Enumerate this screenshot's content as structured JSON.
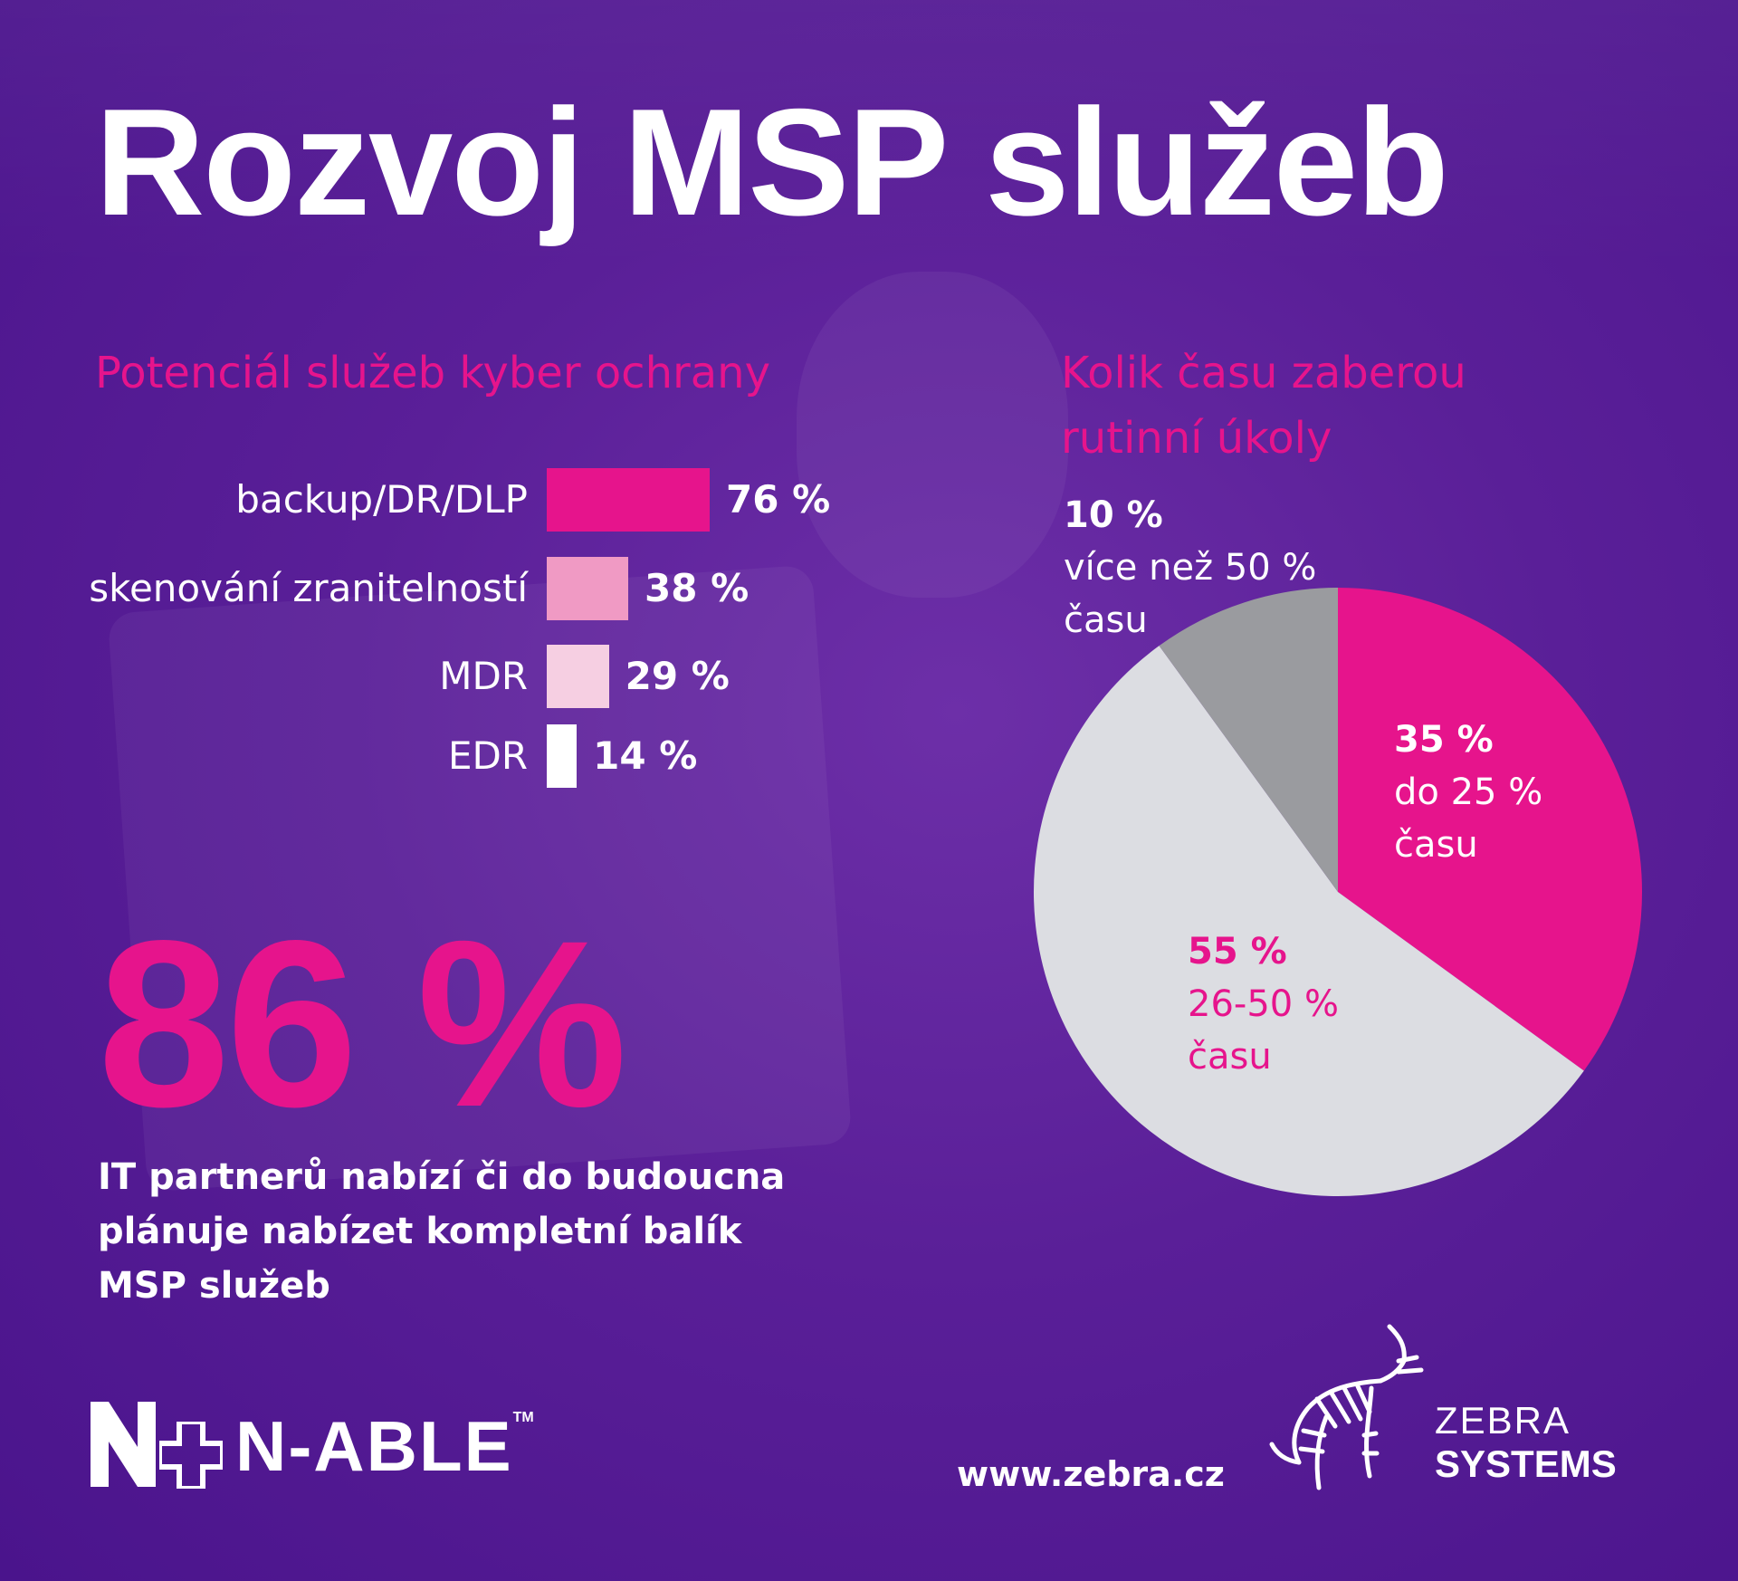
{
  "title": "Rozvoj MSP služeb",
  "colors": {
    "background": "#5a1f98",
    "accent": "#e6148c",
    "bar_shades": [
      "#e6148c",
      "#f09ac4",
      "#f6cfe2",
      "#ffffff"
    ],
    "pie_pink": "#e6148c",
    "pie_light": "#dcdde2",
    "pie_gray": "#9a9b9f"
  },
  "left_section": {
    "title": "Potenciál služeb kyber ochrany"
  },
  "right_section": {
    "title_line1": "Kolik času zaberou",
    "title_line2": "rutinní úkoly"
  },
  "highlight": {
    "value": "86 %",
    "text_line1": "IT partnerů nabízí či do budoucna",
    "text_line2": "plánuje nabízet kompletní balík",
    "text_line3": "MSP služeb"
  },
  "chart_data": [
    {
      "type": "bar",
      "orientation": "horizontal",
      "categories": [
        "backup/DR/DLP",
        "skenování zranitelností",
        "MDR",
        "EDR"
      ],
      "values": [
        76,
        38,
        29,
        14
      ],
      "value_labels": [
        "76 %",
        "38 %",
        "29 %",
        "14 %"
      ],
      "unit": "%"
    },
    {
      "type": "pie",
      "slices": [
        {
          "value": 35,
          "pct_label": "35 %",
          "desc_line1": "do 25 %",
          "desc_line2": "času",
          "color": "#e6148c"
        },
        {
          "value": 55,
          "pct_label": "55 %",
          "desc_line1": "26-50 %",
          "desc_line2": "času",
          "color": "#dcdde2"
        },
        {
          "value": 10,
          "pct_label": "10 %",
          "desc_line1": "více než 50 %",
          "desc_line2": "času",
          "color": "#9a9b9f"
        }
      ]
    }
  ],
  "footer": {
    "url": "www.zebra.cz",
    "nable_name": "N-ABLE",
    "nable_tm": "TM",
    "zebra_line1": "ZEBRA",
    "zebra_line2": "SYSTEMS",
    "icons": [
      "n-able-logo-icon",
      "zebra-logo-icon"
    ]
  }
}
